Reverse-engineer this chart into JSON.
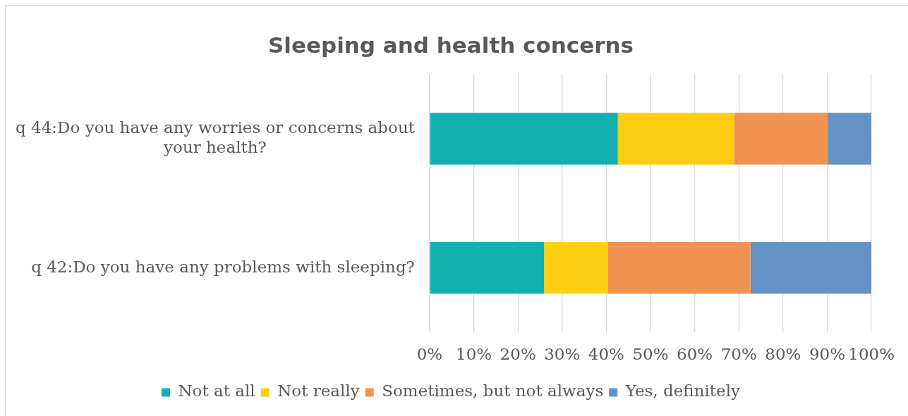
{
  "chart_data": {
    "type": "bar",
    "orientation": "horizontal",
    "stacked": true,
    "title": "Sleeping and health concerns",
    "categories": [
      "q 44:Do you have any worries or concerns about your health?",
      "q 42:Do you have any problems with sleeping?"
    ],
    "series": [
      {
        "name": "Not at all",
        "color": "#13b0b0",
        "values": [
          42.6,
          25.9
        ]
      },
      {
        "name": "Not really",
        "color": "#ffcd12",
        "values": [
          26.3,
          14.4
        ]
      },
      {
        "name": "Sometimes, but not always",
        "color": "#f09352",
        "values": [
          21.2,
          32.3
        ]
      },
      {
        "name": "Yes, definitely",
        "color": "#6592c4",
        "values": [
          9.9,
          27.4
        ]
      }
    ],
    "xlim": [
      0,
      100
    ],
    "xticks": [
      {
        "value": 0,
        "label": "0%"
      },
      {
        "value": 10,
        "label": "10%"
      },
      {
        "value": 20,
        "label": "20%"
      },
      {
        "value": 30,
        "label": "30%"
      },
      {
        "value": 40,
        "label": "40%"
      },
      {
        "value": 50,
        "label": "50%"
      },
      {
        "value": 60,
        "label": "60%"
      },
      {
        "value": 70,
        "label": "70%"
      },
      {
        "value": 80,
        "label": "80%"
      },
      {
        "value": 90,
        "label": "90%"
      },
      {
        "value": 100,
        "label": "100%"
      }
    ],
    "grid": "x",
    "legend": "bottom"
  }
}
